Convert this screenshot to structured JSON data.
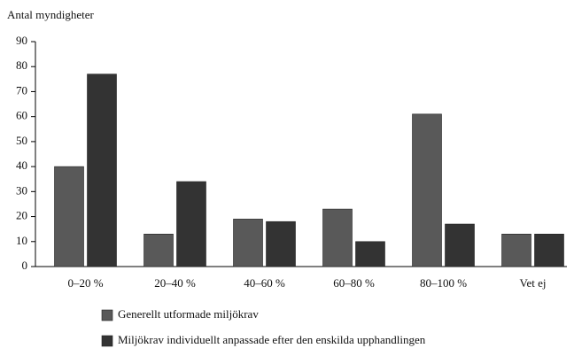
{
  "chart_data": {
    "type": "bar",
    "y_label": "Antal myndigheter",
    "categories": [
      "0–20 %",
      "20–40 %",
      "40–60 %",
      "60–80 %",
      "80–100 %",
      "Vet ej"
    ],
    "series": [
      {
        "name": "Generellt utformade miljökrav",
        "color": "#595959",
        "values": [
          40,
          13,
          19,
          23,
          61,
          13
        ]
      },
      {
        "name": "Miljökrav individuellt anpassade efter den enskilda upphandlingen",
        "color": "#333333",
        "values": [
          77,
          34,
          18,
          10,
          17,
          13
        ]
      }
    ],
    "ylim": [
      0,
      90
    ],
    "yticks": [
      0,
      10,
      20,
      30,
      40,
      50,
      60,
      70,
      80,
      90
    ],
    "grid": false,
    "legend": "bottom"
  }
}
